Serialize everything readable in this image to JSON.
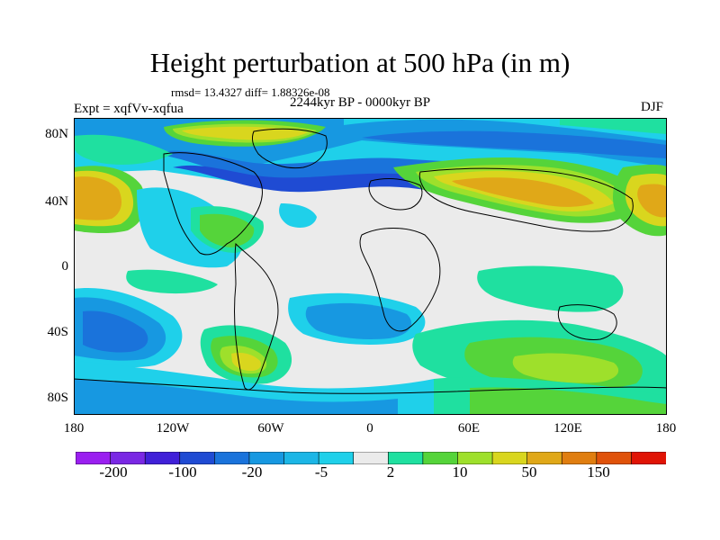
{
  "title": "Height perturbation at 500 hPa (in m)",
  "stats": "rmsd= 13.4327 diff= 1.88326e-08",
  "experiment": "Expt = xqfVv-xqfua",
  "period": "2244kyr BP - 0000kyr BP",
  "season": "DJF",
  "lat_labels": [
    "80N",
    "40N",
    "0",
    "40S",
    "80S"
  ],
  "lon_labels": [
    "180",
    "120W",
    "60W",
    "0",
    "60E",
    "120E",
    "180"
  ],
  "colorbar": {
    "colors": [
      "#9a1ff0",
      "#7a28e4",
      "#4020d8",
      "#1f4bd3",
      "#1a73db",
      "#1798e1",
      "#1cb6e6",
      "#1fd0ea",
      "#ebebeb",
      "#1fe0a0",
      "#55d43a",
      "#9ee02b",
      "#d9d61e",
      "#e0a818",
      "#e07e10",
      "#e0520a",
      "#e01405"
    ],
    "labels": [
      "-200",
      "-100",
      "-20",
      "-5",
      "2",
      "10",
      "50",
      "150"
    ]
  },
  "map_colors": {
    "neutral": "#ebebeb",
    "coastline": "#000000",
    "neg_strong": "#1f4bd3",
    "neg_mid": "#1a73db",
    "neg_light": "#1798e1",
    "neg_faint": "#1fd0ea",
    "pos_faint": "#1fe0a0",
    "pos_light": "#55d43a",
    "pos_mid": "#9ee02b",
    "pos_strong": "#d9d61e",
    "pos_orange": "#e0a818"
  }
}
